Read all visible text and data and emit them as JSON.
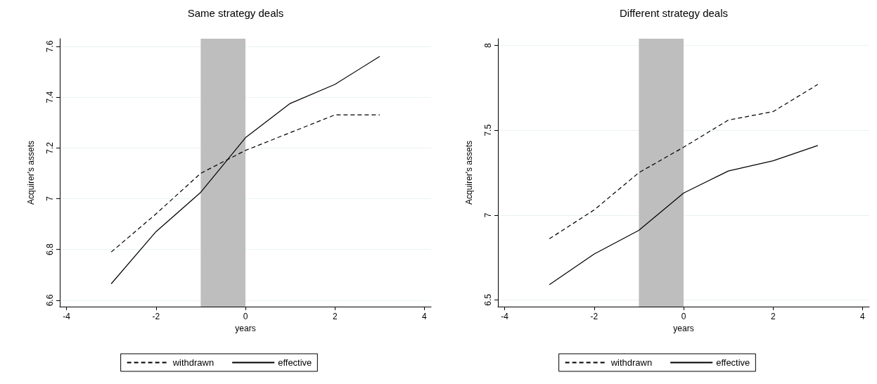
{
  "chart_data": [
    {
      "type": "line",
      "title": "Same strategy deals",
      "xlabel": "years",
      "ylabel": "Acquirer's assets",
      "x": [
        -3,
        -2,
        -1,
        0,
        1,
        2,
        3
      ],
      "series": [
        {
          "name": "withdrawn",
          "color": "#000000",
          "line_style": "dashed",
          "values": [
            6.79,
            6.94,
            7.1,
            7.19,
            7.26,
            7.33,
            7.33
          ]
        },
        {
          "name": "effective",
          "color": "#000000",
          "line_style": "solid",
          "values": [
            6.665,
            6.87,
            7.025,
            7.24,
            7.375,
            7.45,
            7.56
          ]
        }
      ],
      "xlim": [
        -4.15,
        4.15
      ],
      "xticks": [
        -4,
        -2,
        0,
        2,
        4
      ],
      "ylim": [
        6.575,
        7.63
      ],
      "yticks": [
        6.6,
        6.8,
        7,
        7.2,
        7.4,
        7.6
      ],
      "bands": [
        {
          "axis": "x",
          "from": -1,
          "to": 0,
          "color": "#bebebe"
        }
      ],
      "grid": "y",
      "legend": "bottom",
      "marker": "none"
    },
    {
      "type": "line",
      "title": "Different strategy deals",
      "xlabel": "years",
      "ylabel": "Acquirer's assets",
      "x": [
        -3,
        -2,
        -1,
        0,
        1,
        2,
        3
      ],
      "series": [
        {
          "name": "withdrawn",
          "color": "#000000",
          "line_style": "dashed",
          "values": [
            6.86,
            7.03,
            7.25,
            7.4,
            7.56,
            7.61,
            7.77
          ]
        },
        {
          "name": "effective",
          "color": "#000000",
          "line_style": "solid",
          "values": [
            6.59,
            6.77,
            6.91,
            7.13,
            7.26,
            7.32,
            7.41
          ]
        }
      ],
      "xlim": [
        -4.15,
        4.15
      ],
      "xticks": [
        -4,
        -2,
        0,
        2,
        4
      ],
      "ylim": [
        6.46,
        8.04
      ],
      "yticks": [
        6.5,
        7,
        7.5,
        8
      ],
      "bands": [
        {
          "axis": "x",
          "from": -1,
          "to": 0,
          "color": "#bebebe"
        }
      ],
      "grid": "y",
      "legend": "bottom",
      "marker": "none"
    }
  ]
}
